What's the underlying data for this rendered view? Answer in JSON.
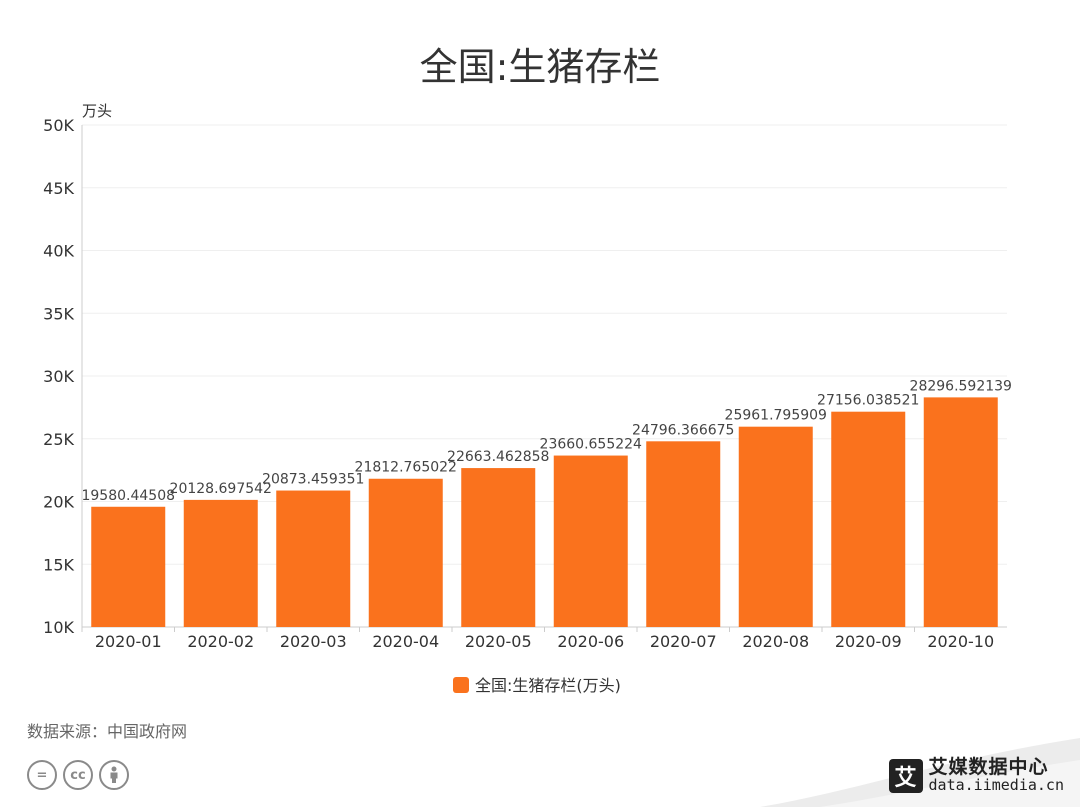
{
  "chart_data": {
    "type": "bar",
    "title": "全国:生猪存栏",
    "ylabel": "万头",
    "xlabel": "",
    "categories": [
      "2020-01",
      "2020-02",
      "2020-03",
      "2020-04",
      "2020-05",
      "2020-06",
      "2020-07",
      "2020-08",
      "2020-09",
      "2020-10"
    ],
    "values": [
      19580.44508,
      20128.697542,
      20873.459351,
      21812.765022,
      22663.462858,
      23660.655224,
      24796.366675,
      25961.795909,
      27156.038521,
      28296.592139
    ],
    "value_labels": [
      "19580.44508",
      "20128.697542",
      "20873.459351",
      "21812.765022",
      "22663.462858",
      "23660.655224",
      "24796.366675",
      "25961.795909",
      "27156.038521",
      "28296.592139"
    ],
    "ylim": [
      10000,
      50000
    ],
    "yticks": [
      10000,
      15000,
      20000,
      25000,
      30000,
      35000,
      40000,
      45000,
      50000
    ],
    "ytick_labels": [
      "10K",
      "15K",
      "20K",
      "25K",
      "30K",
      "35K",
      "40K",
      "45K",
      "50K"
    ],
    "legend": {
      "label": "全国:生猪存栏(万头)",
      "placement": "bottom"
    },
    "bar_color": "#fa721d",
    "grid": true
  },
  "footer": {
    "source": "数据来源：中国政府网",
    "brand_name": "艾媒数据中心",
    "brand_url": "data.iimedia.cn",
    "brand_logo_char": "艾",
    "cc_icons": [
      "equals-icon",
      "cc-icon",
      "person-icon"
    ],
    "cc_labels": [
      "=",
      "cc",
      ""
    ]
  }
}
